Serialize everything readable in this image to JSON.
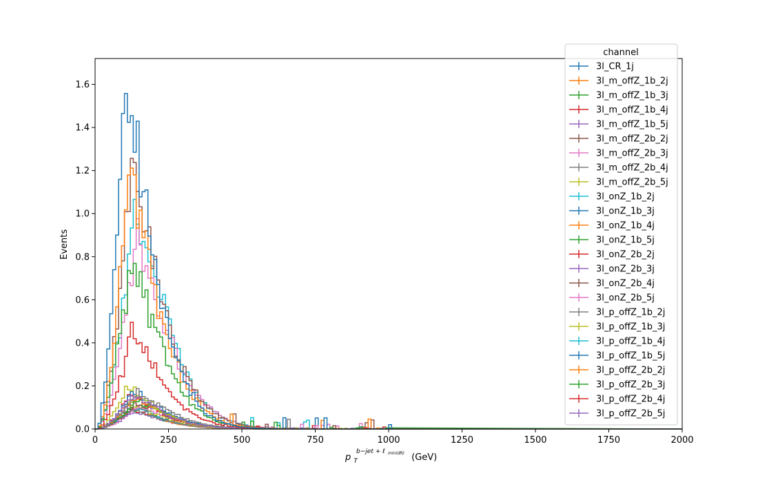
{
  "chart_data": {
    "type": "line",
    "xlabel_main": "p",
    "xlabel_sub": "T",
    "xlabel_sup": "b−jet + ℓ",
    "xlabel_sup_sub": "min(dR)",
    "xlabel_unit": "(GeV)",
    "ylabel": "Events",
    "xlim": [
      0,
      2000
    ],
    "ylim": [
      0,
      1.72
    ],
    "xticks": [
      "0",
      "250",
      "500",
      "750",
      "1000",
      "1250",
      "1500",
      "1750",
      "2000"
    ],
    "yticks": [
      "0.0",
      "0.2",
      "0.4",
      "0.6",
      "0.8",
      "1.0",
      "1.2",
      "1.4",
      "1.6"
    ],
    "grid": false,
    "legend_title": "channel",
    "legend_position": "top-right",
    "series": [
      {
        "name": "3l_CR_1j",
        "color": "#1f77b4",
        "peak_x": 100,
        "peak_y": 1.64
      },
      {
        "name": "3l_m_offZ_1b_2j",
        "color": "#ff7f0e",
        "peak_x": 115,
        "peak_y": 1.17
      },
      {
        "name": "3l_m_offZ_1b_3j",
        "color": "#2ca02c",
        "peak_x": 120,
        "peak_y": 0.79
      },
      {
        "name": "3l_m_offZ_1b_4j",
        "color": "#d62728",
        "peak_x": 125,
        "peak_y": 0.45
      },
      {
        "name": "3l_m_offZ_1b_5j",
        "color": "#9467bd",
        "peak_x": 125,
        "peak_y": 0.16
      },
      {
        "name": "3l_m_offZ_2b_2j",
        "color": "#8c564b",
        "peak_x": 125,
        "peak_y": 1.21
      },
      {
        "name": "3l_m_offZ_2b_3j",
        "color": "#e377c2",
        "peak_x": 140,
        "peak_y": 0.9
      },
      {
        "name": "3l_m_offZ_2b_4j",
        "color": "#7f7f7f",
        "peak_x": 140,
        "peak_y": 0.17
      },
      {
        "name": "3l_m_offZ_2b_5j",
        "color": "#bcbd22",
        "peak_x": 110,
        "peak_y": 0.2
      },
      {
        "name": "3l_onZ_1b_2j",
        "color": "#17becf",
        "peak_x": 135,
        "peak_y": 1.05
      },
      {
        "name": "3l_onZ_1b_3j",
        "color": "#1f77b4",
        "peak_x": 130,
        "peak_y": 0.17
      },
      {
        "name": "3l_onZ_1b_4j",
        "color": "#ff7f0e",
        "peak_x": 130,
        "peak_y": 0.15
      },
      {
        "name": "3l_onZ_1b_5j",
        "color": "#2ca02c",
        "peak_x": 140,
        "peak_y": 0.13
      },
      {
        "name": "3l_onZ_2b_2j",
        "color": "#d62728",
        "peak_x": 120,
        "peak_y": 0.16
      },
      {
        "name": "3l_onZ_2b_3j",
        "color": "#9467bd",
        "peak_x": 135,
        "peak_y": 0.14
      },
      {
        "name": "3l_onZ_2b_4j",
        "color": "#8c564b",
        "peak_x": 140,
        "peak_y": 0.12
      },
      {
        "name": "3l_onZ_2b_5j",
        "color": "#e377c2",
        "peak_x": 150,
        "peak_y": 0.11
      },
      {
        "name": "3l_p_offZ_1b_2j",
        "color": "#7f7f7f",
        "peak_x": 120,
        "peak_y": 0.1
      },
      {
        "name": "3l_p_offZ_1b_3j",
        "color": "#bcbd22",
        "peak_x": 120,
        "peak_y": 0.12
      },
      {
        "name": "3l_p_offZ_1b_4j",
        "color": "#17becf",
        "peak_x": 125,
        "peak_y": 0.1
      },
      {
        "name": "3l_p_offZ_1b_5j",
        "color": "#1f77b4",
        "peak_x": 130,
        "peak_y": 0.09
      },
      {
        "name": "3l_p_offZ_2b_2j",
        "color": "#ff7f0e",
        "peak_x": 110,
        "peak_y": 0.11
      },
      {
        "name": "3l_p_offZ_2b_3j",
        "color": "#2ca02c",
        "peak_x": 120,
        "peak_y": 0.1
      },
      {
        "name": "3l_p_offZ_2b_4j",
        "color": "#d62728",
        "peak_x": 120,
        "peak_y": 0.09
      },
      {
        "name": "3l_p_offZ_2b_5j",
        "color": "#9467bd",
        "peak_x": 130,
        "peak_y": 0.08
      }
    ]
  }
}
